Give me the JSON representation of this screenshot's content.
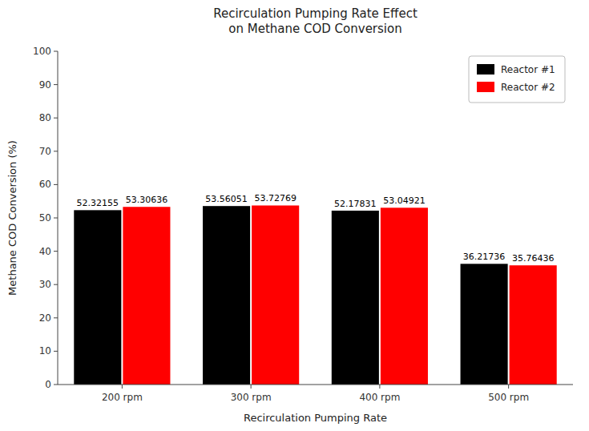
{
  "chart_data": {
    "type": "bar",
    "title": "Recirculation Pumping Rate Effect\non Methane COD Conversion",
    "x_label": "Recirculation Pumping Rate",
    "y_label": "Methane COD Conversion (%)",
    "categories": [
      "200 rpm",
      "300 rpm",
      "400 rpm",
      "500 rpm"
    ],
    "series": [
      {
        "name": "Reactor #1",
        "color": "#000000",
        "values": [
          52.32155,
          53.56051,
          52.17831,
          36.21736
        ]
      },
      {
        "name": "Reactor #2",
        "color": "#ff0000",
        "values": [
          53.30636,
          53.72769,
          53.04921,
          35.76436
        ]
      }
    ],
    "ylim": [
      0,
      100
    ],
    "yticks": [
      0,
      10,
      20,
      30,
      40,
      50,
      60,
      70,
      80,
      90,
      100
    ],
    "grid": false,
    "legend": "upper right",
    "data_labels": true
  }
}
